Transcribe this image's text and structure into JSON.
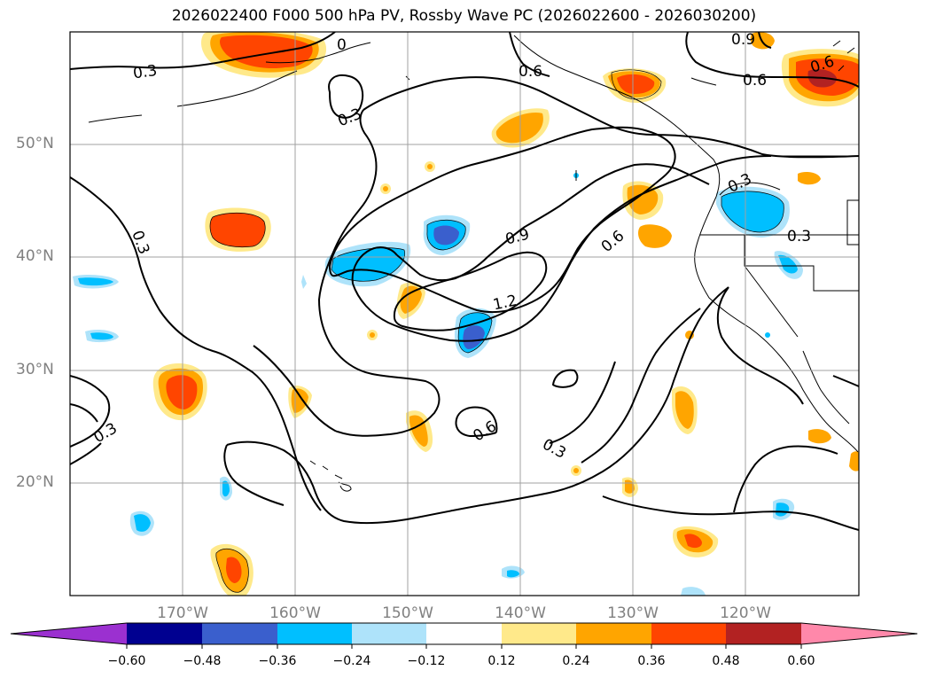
{
  "title": "2026022400 F000 500 hPa PV, Rossby Wave PC (2026022600 - 2026030200)",
  "map": {
    "lat_labels": [
      "50°N",
      "40°N",
      "30°N",
      "20°N"
    ],
    "lon_labels": [
      "170°W",
      "160°W",
      "150°W",
      "140°W",
      "130°W",
      "120°W"
    ],
    "contour_labels": [
      "0.3",
      "0.3",
      "0.3",
      "0.3",
      "0.3",
      "0.3",
      "0.3",
      "0.6",
      "0.6",
      "0.6",
      "0.6",
      "0.9",
      "0.9",
      "1.2",
      "0",
      "0.6"
    ]
  },
  "colorbar": {
    "tick_labels": [
      "−0.60",
      "−0.48",
      "−0.36",
      "−0.24",
      "−0.12",
      "0.12",
      "0.24",
      "0.36",
      "0.48",
      "0.60"
    ],
    "colors": [
      "#9b30d0",
      "#000090",
      "#3a5fcd",
      "#00bfff",
      "#aee3fa",
      "#ffffff",
      "#ffe98a",
      "#ffa500",
      "#ff4500",
      "#b22222",
      "#ff88aa"
    ]
  }
}
